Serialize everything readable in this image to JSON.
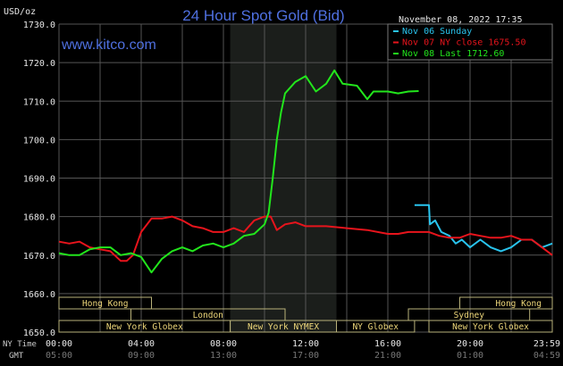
{
  "chart_data": {
    "type": "line",
    "title": "24 Hour Spot Gold (Bid)",
    "ylabel": "USD/oz",
    "watermark": "www.kitco.com",
    "timestamp": "November 08, 2022 17:35",
    "ylim": [
      1650,
      1730
    ],
    "xlim": [
      0,
      24
    ],
    "grid": true,
    "legend_position": "top-right",
    "yticks": [
      "1650.0",
      "1660.0",
      "1670.0",
      "1680.0",
      "1690.0",
      "1700.0",
      "1710.0",
      "1720.0",
      "1730.0"
    ],
    "x_row_labels": {
      "ny": "NY Time",
      "gmt": "GMT"
    },
    "xticks_ny": [
      "00:00",
      "04:00",
      "08:00",
      "12:00",
      "16:00",
      "20:00",
      "23:59"
    ],
    "xticks_gmt": [
      "05:00",
      "09:00",
      "13:00",
      "17:00",
      "21:00",
      "01:00",
      "04:59"
    ],
    "shaded_hours": [
      8.33,
      13.5
    ],
    "sessions": [
      {
        "label": "Hong Kong",
        "row": 0,
        "start": 0,
        "end": 4.5
      },
      {
        "label": "Hong Kong",
        "row": 0,
        "start": 19.5,
        "end": 24
      },
      {
        "label": "London",
        "row": 1,
        "start": 3.5,
        "end": 11
      },
      {
        "label": "Sydney",
        "row": 1,
        "start": 17,
        "end": 22.9
      },
      {
        "label": "New York Globex",
        "row": 2,
        "start": 0,
        "end": 8.33
      },
      {
        "label": "New York NYMEX",
        "row": 2,
        "start": 8.33,
        "end": 13.5
      },
      {
        "label": "NY Globex",
        "row": 2,
        "start": 13.5,
        "end": 17.3
      },
      {
        "label": "New York Globex",
        "row": 2,
        "start": 18,
        "end": 24
      }
    ],
    "series": [
      {
        "name": "Nov 06 Sunday",
        "legend": "Nov 06 Sunday",
        "color": "#29c4ee",
        "x": [
          17.3,
          18.0,
          18.05,
          18.3,
          18.6,
          19,
          19.3,
          19.6,
          20,
          20.5,
          21,
          21.5,
          22,
          22.5,
          23,
          23.5,
          24
        ],
        "y": [
          1683,
          1683,
          1678,
          1679,
          1676,
          1675,
          1673,
          1674,
          1672,
          1674,
          1672,
          1671,
          1672,
          1674,
          1674,
          1672,
          1673
        ]
      },
      {
        "name": "Nov 07 NY close",
        "legend": "Nov 07 NY close 1675.50",
        "color": "#e8141c",
        "x": [
          0,
          0.5,
          1,
          1.5,
          2,
          2.5,
          3,
          3.3,
          3.6,
          4,
          4.5,
          5,
          5.5,
          6,
          6.5,
          7,
          7.5,
          8,
          8.5,
          9,
          9.5,
          10,
          10.3,
          10.6,
          11,
          11.5,
          12,
          13,
          14,
          15,
          16,
          16.5,
          17,
          18,
          18.5,
          19,
          19.5,
          20,
          20.5,
          21,
          21.5,
          22,
          22.5,
          23,
          23.5,
          24
        ],
        "y": [
          1673.5,
          1673,
          1673.5,
          1672,
          1671.5,
          1671,
          1668.5,
          1668.5,
          1670,
          1676,
          1679.5,
          1679.5,
          1680,
          1679,
          1677.5,
          1677,
          1676,
          1676,
          1677,
          1676,
          1679,
          1680,
          1680,
          1676.5,
          1678,
          1678.5,
          1677.5,
          1677.5,
          1677,
          1676.5,
          1675.5,
          1675.5,
          1676,
          1676,
          1675,
          1674.5,
          1674.5,
          1675.5,
          1675,
          1674.5,
          1674.5,
          1675,
          1674,
          1674,
          1672,
          1670
        ]
      },
      {
        "name": "Nov 08 Last",
        "legend": "Nov 08 Last 1712.60",
        "color": "#22e61c",
        "x": [
          0,
          0.5,
          1,
          1.5,
          2,
          2.5,
          3,
          3.5,
          4,
          4.5,
          5,
          5.5,
          6,
          6.5,
          7,
          7.5,
          8,
          8.5,
          9,
          9.5,
          10,
          10.2,
          10.4,
          10.6,
          10.8,
          11,
          11.5,
          12,
          12.5,
          13,
          13.4,
          13.8,
          14.5,
          15,
          15.3,
          16,
          16.5,
          17,
          17.5
        ],
        "y": [
          1670.5,
          1670,
          1670,
          1671.5,
          1672,
          1672,
          1670,
          1670.5,
          1669.5,
          1665.5,
          1669,
          1671,
          1672,
          1671,
          1672.5,
          1673,
          1672,
          1673,
          1675,
          1675.5,
          1678,
          1681,
          1690,
          1700,
          1707,
          1712,
          1715,
          1716.5,
          1712.5,
          1714.5,
          1718,
          1714.5,
          1714,
          1710.5,
          1712.5,
          1712.5,
          1712,
          1712.5,
          1712.6
        ]
      }
    ]
  }
}
